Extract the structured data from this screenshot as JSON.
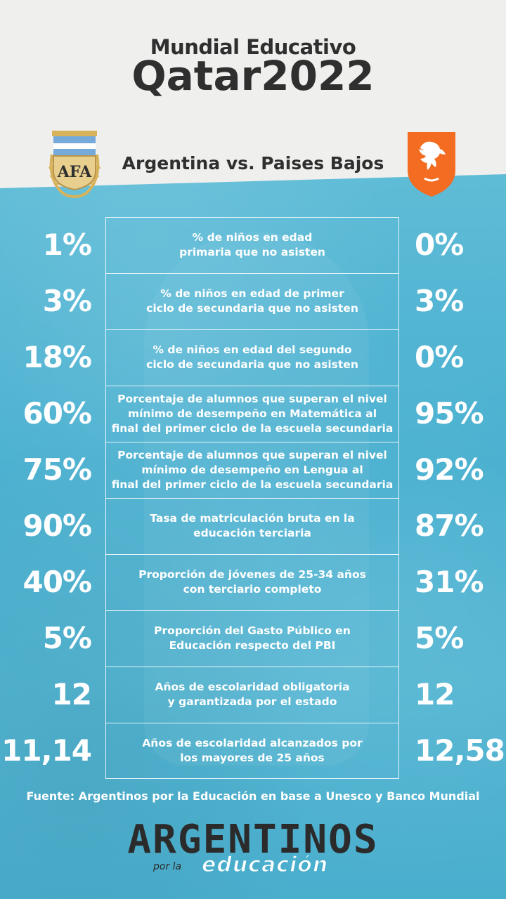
{
  "header": {
    "title_line1": "Mundial Educativo",
    "title_line2": "Qatar2022",
    "matchup": "Argentina vs. Paises Bajos"
  },
  "logos": {
    "left_text": "AFA",
    "left_colors": [
      "#75aadb",
      "#ffffff",
      "#d8b35b"
    ],
    "right_color": "#f36c21"
  },
  "rows": [
    {
      "label_line1": "% de niños en edad",
      "label_line2": "primaria que no asisten",
      "label_line3": "",
      "argentina": "1%",
      "paises_bajos": "0%"
    },
    {
      "label_line1": "% de niños en edad de primer",
      "label_line2": "ciclo de secundaria que no asisten",
      "label_line3": "",
      "argentina": "3%",
      "paises_bajos": "3%"
    },
    {
      "label_line1": "% de niños en edad del segundo",
      "label_line2": "ciclo de secundaria que no asisten",
      "label_line3": "",
      "argentina": "18%",
      "paises_bajos": "0%"
    },
    {
      "label_line1": "Porcentaje de alumnos que superan el nivel",
      "label_line2": "mínimo de desempeño en Matemática al",
      "label_line3": "final del primer ciclo de la escuela secundaria",
      "argentina": "60%",
      "paises_bajos": "95%"
    },
    {
      "label_line1": "Porcentaje de alumnos que superan el nivel",
      "label_line2": "mínimo de desempeño en Lengua al",
      "label_line3": "final del primer ciclo de la escuela secundaria",
      "argentina": "75%",
      "paises_bajos": "92%"
    },
    {
      "label_line1": "Tasa de matriculación bruta en la",
      "label_line2": "educación terciaria",
      "label_line3": "",
      "argentina": "90%",
      "paises_bajos": "87%"
    },
    {
      "label_line1": "Proporción de jóvenes de 25-34 años",
      "label_line2": "con terciario completo",
      "label_line3": "",
      "argentina": "40%",
      "paises_bajos": "31%"
    },
    {
      "label_line1": "Proporción del Gasto Público en",
      "label_line2": "Educación respecto del PBI",
      "label_line3": "",
      "argentina": "5%",
      "paises_bajos": "5%"
    },
    {
      "label_line1": "Años de escolaridad obligatoria",
      "label_line2": "y garantizada por el estado",
      "label_line3": "",
      "argentina": "12",
      "paises_bajos": "12"
    },
    {
      "label_line1": "Años de escolaridad alcanzados por",
      "label_line2": "los mayores de 25 años",
      "label_line3": "",
      "argentina": "11,14",
      "paises_bajos": "12,58"
    }
  ],
  "source": "Fuente: Argentinos por la Educación en base a Unesco y Banco Mundial",
  "brand": {
    "main": "ARGENTINOS",
    "por_la": "por la",
    "educacion": "educación"
  },
  "colors": {
    "background_top": "#efefed",
    "background_blue": "#4aaecd",
    "text_dark": "#2f2f2f",
    "text_light": "#ffffff"
  }
}
